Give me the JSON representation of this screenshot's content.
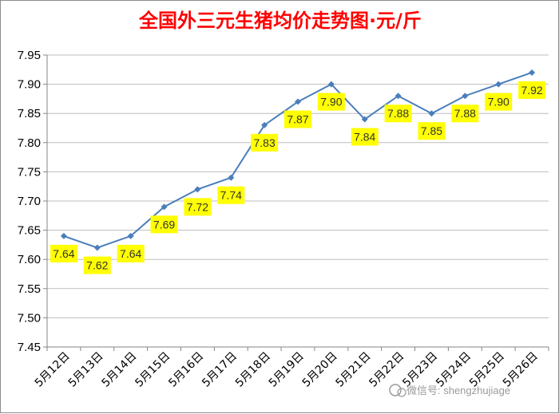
{
  "chart_data": {
    "type": "line",
    "title": "全国外三元生猪均价走势图·元/斤",
    "categories": [
      "5月12日",
      "5月13日",
      "5月14日",
      "5月15日",
      "5月16日",
      "5月17日",
      "5月18日",
      "5月19日",
      "5月20日",
      "5月21日",
      "5月22日",
      "5月23日",
      "5月24日",
      "5月25日",
      "5月26日"
    ],
    "series": [
      {
        "values": [
          7.64,
          7.62,
          7.64,
          7.69,
          7.72,
          7.74,
          7.83,
          7.87,
          7.9,
          7.84,
          7.88,
          7.85,
          7.88,
          7.9,
          7.92
        ]
      }
    ],
    "data_labels": [
      "7.64",
      "7.62",
      "7.64",
      "7.69",
      "7.72",
      "7.74",
      "7.83",
      "7.87",
      "7.90",
      "7.84",
      "7.88",
      "7.85",
      "7.88",
      "7.90",
      "7.92"
    ],
    "yticks": [
      "7.45",
      "7.50",
      "7.55",
      "7.60",
      "7.65",
      "7.70",
      "7.75",
      "7.80",
      "7.85",
      "7.90",
      "7.95"
    ],
    "ylim": [
      7.45,
      7.95
    ],
    "grid": true,
    "line_color": "#4a7ebb",
    "label_bg_color": "#ffff00"
  },
  "watermark": {
    "text": "微信号: shengzhujiage"
  }
}
